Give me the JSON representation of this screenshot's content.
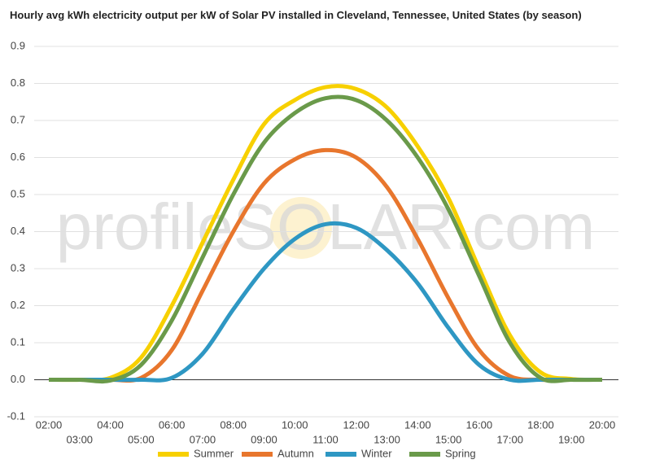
{
  "chart_data": {
    "type": "line",
    "title": "Hourly avg kWh electricity output per kW of Solar PV installed in Cleveland, Tennessee, United States (by season)",
    "watermark": "profileSOLAR.com",
    "categories": [
      "02:00",
      "03:00",
      "04:00",
      "05:00",
      "06:00",
      "07:00",
      "08:00",
      "09:00",
      "10:00",
      "11:00",
      "12:00",
      "13:00",
      "14:00",
      "15:00",
      "16:00",
      "17:00",
      "18:00",
      "19:00",
      "20:00"
    ],
    "series": [
      {
        "name": "Summer",
        "color": "#f7d000",
        "values": [
          0,
          0,
          0.005,
          0.06,
          0.2,
          0.37,
          0.54,
          0.69,
          0.755,
          0.79,
          0.785,
          0.735,
          0.63,
          0.49,
          0.3,
          0.12,
          0.02,
          0.002,
          0
        ]
      },
      {
        "name": "Autumn",
        "color": "#e8762d",
        "values": [
          0,
          0,
          0,
          0.005,
          0.08,
          0.24,
          0.4,
          0.53,
          0.595,
          0.62,
          0.6,
          0.52,
          0.38,
          0.22,
          0.08,
          0.01,
          0,
          0,
          0
        ]
      },
      {
        "name": "Winter",
        "color": "#2e97c3",
        "values": [
          0,
          0,
          0,
          0,
          0.005,
          0.07,
          0.19,
          0.3,
          0.38,
          0.42,
          0.41,
          0.35,
          0.26,
          0.14,
          0.04,
          0,
          0,
          0,
          0
        ]
      },
      {
        "name": "Spring",
        "color": "#6a9a4a",
        "values": [
          0,
          0,
          -0.002,
          0.04,
          0.16,
          0.33,
          0.5,
          0.64,
          0.72,
          0.76,
          0.755,
          0.7,
          0.6,
          0.46,
          0.28,
          0.1,
          0.005,
          0,
          0
        ]
      }
    ],
    "ylim": [
      -0.1,
      0.9
    ],
    "yticks": [
      -0.1,
      {
        "value": 0,
        "label": "0.0"
      },
      0.1,
      0.2,
      0.3,
      0.4,
      0.5,
      0.6,
      0.7,
      0.8,
      0.9
    ],
    "grid": true,
    "legend": "bottom"
  }
}
